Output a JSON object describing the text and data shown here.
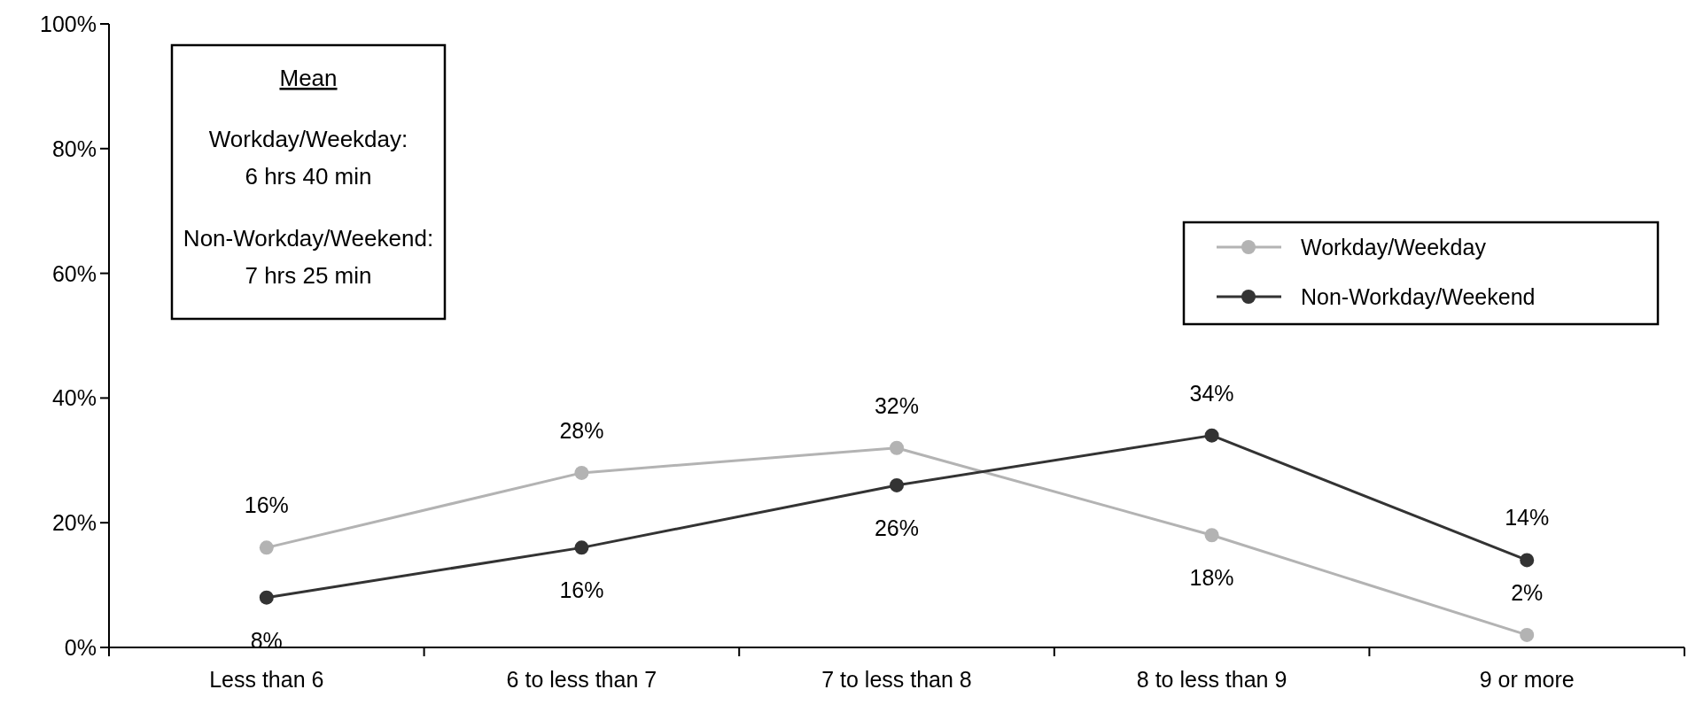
{
  "chart_data": {
    "type": "line",
    "categories": [
      "Less than 6",
      "6 to less than 7",
      "7 to less than 8",
      "8 to less than 9",
      "9 or more"
    ],
    "series": [
      {
        "name": "Workday/Weekday",
        "color": "#b3b3b3",
        "values": [
          16,
          28,
          32,
          18,
          2
        ],
        "value_labels": [
          "16%",
          "28%",
          "32%",
          "18%",
          "2%"
        ]
      },
      {
        "name": "Non-Workday/Weekend",
        "color": "#333333",
        "values": [
          8,
          16,
          26,
          34,
          14
        ],
        "value_labels": [
          "8%",
          "16%",
          "26%",
          "34%",
          "14%"
        ]
      }
    ],
    "ylim": [
      0,
      100
    ],
    "yticks": [
      {
        "value": 0,
        "label": "0%"
      },
      {
        "value": 20,
        "label": "20%"
      },
      {
        "value": 40,
        "label": "40%"
      },
      {
        "value": 60,
        "label": "60%"
      },
      {
        "value": 80,
        "label": "80%"
      },
      {
        "value": 100,
        "label": "100%"
      }
    ],
    "annotations": [
      "Mean",
      "Workday/Weekday:",
      "6 hrs 40 min",
      "Non-Workday/Weekend:",
      "7 hrs 25 min"
    ],
    "grid": false,
    "legend": "right",
    "marker": "circle",
    "line_style": "solid"
  }
}
